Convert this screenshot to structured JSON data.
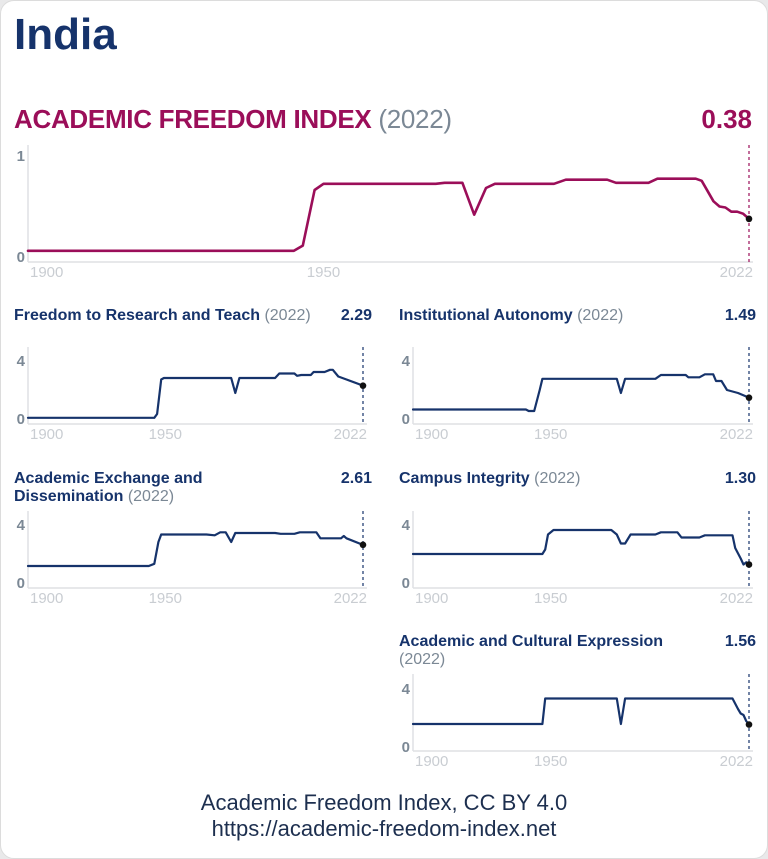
{
  "country": "India",
  "footer": {
    "source": "Academic Freedom Index, CC BY 4.0",
    "url": "https://academic-freedom-index.net"
  },
  "colors": {
    "main": "#9b0e59",
    "sub": "#16336b",
    "axis_label": "#7b8895",
    "x_tick": "#c9cdd2"
  },
  "chart_data": [
    {
      "type": "line",
      "title": "ACADEMIC FREEDOM INDEX",
      "year_label": "(2022)",
      "value": "0.38",
      "ylim": [
        0,
        1
      ],
      "yticks": [
        "0",
        "1"
      ],
      "xlim": [
        1900,
        2022
      ],
      "xticks": [
        "1900",
        "1950",
        "2022"
      ],
      "grid": false,
      "x": [
        1900,
        1945,
        1946.5,
        1948.5,
        1950,
        1969,
        1970.5,
        1973.5,
        1975.5,
        1977.5,
        1979,
        1989,
        1991,
        1998,
        1999.5,
        2005,
        2006.5,
        2013,
        2014,
        2016,
        2017,
        2018,
        2019,
        2020,
        2021,
        2022
      ],
      "y": [
        0.07,
        0.07,
        0.12,
        0.66,
        0.72,
        0.72,
        0.73,
        0.73,
        0.42,
        0.68,
        0.72,
        0.72,
        0.76,
        0.76,
        0.73,
        0.73,
        0.77,
        0.77,
        0.75,
        0.55,
        0.5,
        0.49,
        0.45,
        0.45,
        0.43,
        0.38
      ]
    },
    {
      "type": "line",
      "title": "Freedom to Research and Teach",
      "year_label": "(2022)",
      "value": "2.29",
      "ylim": [
        0,
        4
      ],
      "yticks": [
        "0",
        "4"
      ],
      "xlim": [
        1900,
        2022
      ],
      "xticks": [
        "1900",
        "1950",
        "2022"
      ],
      "grid": false,
      "x": [
        1900,
        1946,
        1947,
        1948.5,
        1949.5,
        1974,
        1975.5,
        1977,
        1990,
        1991.5,
        1997,
        1998,
        1999.5,
        2003,
        2004,
        2008,
        2010,
        2011,
        2013,
        2016,
        2022
      ],
      "y": [
        0.15,
        0.15,
        0.4,
        2.7,
        2.8,
        2.8,
        1.8,
        2.8,
        2.8,
        3.1,
        3.1,
        2.95,
        3.0,
        3.0,
        3.2,
        3.2,
        3.35,
        3.35,
        2.9,
        2.7,
        2.29
      ]
    },
    {
      "type": "line",
      "title": "Institutional Autonomy",
      "year_label": "(2022)",
      "value": "1.49",
      "ylim": [
        0,
        4
      ],
      "yticks": [
        "0",
        "4"
      ],
      "xlim": [
        1900,
        2022
      ],
      "xticks": [
        "1900",
        "1950",
        "2022"
      ],
      "grid": false,
      "x": [
        1900,
        1941,
        1942,
        1944,
        1946,
        1947,
        1974,
        1975.5,
        1977,
        1988,
        1990,
        1999,
        2000,
        2004,
        2006,
        2009,
        2010,
        2012,
        2014,
        2018,
        2022
      ],
      "y": [
        0.7,
        0.7,
        0.6,
        0.6,
        2.0,
        2.75,
        2.75,
        1.8,
        2.75,
        2.75,
        3.0,
        3.0,
        2.85,
        2.85,
        3.05,
        3.05,
        2.6,
        2.6,
        2.0,
        1.8,
        1.49
      ]
    },
    {
      "type": "line",
      "title": "Academic Exchange and Dissemination",
      "year_label": "(2022)",
      "value": "2.61",
      "ylim": [
        0,
        4
      ],
      "yticks": [
        "0",
        "4"
      ],
      "xlim": [
        1900,
        2022
      ],
      "xticks": [
        "1900",
        "1950",
        "2022"
      ],
      "grid": false,
      "x": [
        1900,
        1944,
        1946,
        1947.5,
        1948.5,
        1965,
        1968,
        1970,
        1972,
        1974,
        1975.5,
        1990,
        1992,
        1997,
        1999,
        2005,
        2006.5,
        2014,
        2015,
        2016,
        2022
      ],
      "y": [
        1.2,
        1.2,
        1.35,
        2.8,
        3.3,
        3.3,
        3.25,
        3.45,
        3.45,
        2.8,
        3.4,
        3.4,
        3.35,
        3.35,
        3.45,
        3.45,
        3.05,
        3.05,
        3.2,
        3.05,
        2.61
      ]
    },
    {
      "type": "line",
      "title": "Campus Integrity",
      "year_label": "(2022)",
      "value": "1.30",
      "ylim": [
        0,
        4
      ],
      "yticks": [
        "0",
        "4"
      ],
      "xlim": [
        1900,
        2022
      ],
      "xticks": [
        "1900",
        "1950",
        "2022"
      ],
      "grid": false,
      "x": [
        1900,
        1947,
        1948,
        1949,
        1951,
        1972,
        1974,
        1975.5,
        1977,
        1979,
        1988,
        1990,
        1996,
        1997.5,
        2004,
        2006,
        2016,
        2017,
        2019,
        2020,
        2021,
        2022
      ],
      "y": [
        2.0,
        2.0,
        2.3,
        3.3,
        3.6,
        3.6,
        3.3,
        2.7,
        2.7,
        3.3,
        3.3,
        3.45,
        3.45,
        3.1,
        3.1,
        3.25,
        3.25,
        2.4,
        1.7,
        1.3,
        1.45,
        1.3
      ]
    },
    {
      "type": "line",
      "title": "Academic and Cultural Expression",
      "year_label": "(2022)",
      "value": "1.56",
      "ylim": [
        0,
        4
      ],
      "yticks": [
        "0",
        "4"
      ],
      "xlim": [
        1900,
        2022
      ],
      "xticks": [
        "1900",
        "1950",
        "2022"
      ],
      "grid": false,
      "x": [
        1900,
        1947,
        1948,
        1974,
        1975.5,
        1977,
        2016,
        2018,
        2019,
        2020,
        2021,
        2022
      ],
      "y": [
        1.6,
        1.6,
        3.3,
        3.3,
        1.6,
        3.3,
        3.3,
        2.6,
        2.3,
        2.2,
        1.8,
        1.56
      ]
    }
  ]
}
